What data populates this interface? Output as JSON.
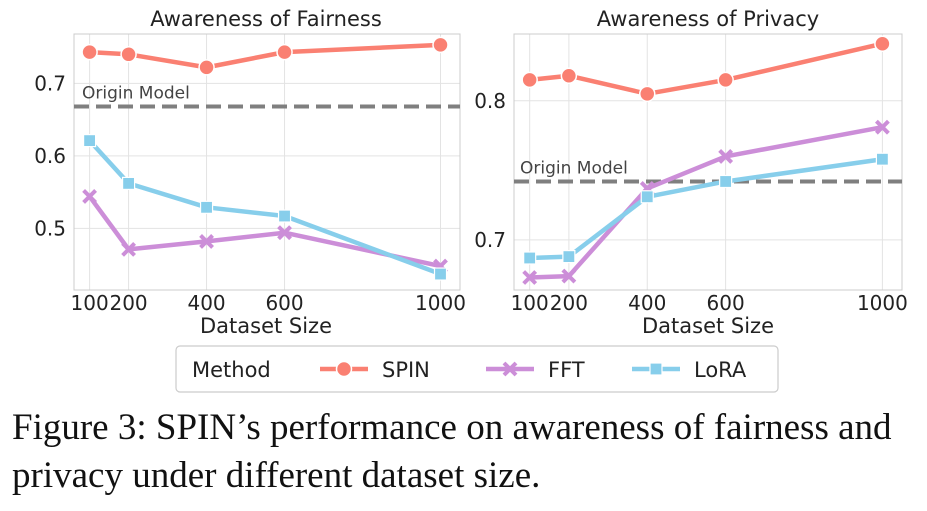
{
  "chart_data": [
    {
      "type": "line",
      "title": "Awareness of Fairness",
      "xlabel": "Dataset Size",
      "ylabel": "",
      "x": [
        100,
        200,
        400,
        600,
        1000
      ],
      "xlim": [
        60,
        1050
      ],
      "ylim": [
        0.415,
        0.768
      ],
      "yticks": [
        0.5,
        0.6,
        0.7
      ],
      "ytick_labels": [
        "0.5",
        "0.6",
        "0.7"
      ],
      "xtick_labels": [
        "100",
        "200",
        "400",
        "600",
        "1000"
      ],
      "grid": true,
      "series": [
        {
          "name": "SPIN",
          "values": [
            0.743,
            0.74,
            0.722,
            0.743,
            0.753
          ]
        },
        {
          "name": "FFT",
          "values": [
            0.544,
            0.471,
            0.482,
            0.494,
            0.448
          ]
        },
        {
          "name": "LoRA",
          "values": [
            0.621,
            0.562,
            0.529,
            0.517,
            0.437
          ]
        }
      ],
      "reference_line": {
        "label": "Origin Model",
        "value": 0.668
      }
    },
    {
      "type": "line",
      "title": "Awareness of Privacy",
      "xlabel": "Dataset Size",
      "ylabel": "",
      "x": [
        100,
        200,
        400,
        600,
        1000
      ],
      "xlim": [
        60,
        1050
      ],
      "ylim": [
        0.664,
        0.848
      ],
      "yticks": [
        0.7,
        0.8
      ],
      "ytick_labels": [
        "0.7",
        "0.8"
      ],
      "xtick_labels": [
        "100",
        "200",
        "400",
        "600",
        "1000"
      ],
      "grid": true,
      "series": [
        {
          "name": "SPIN",
          "values": [
            0.815,
            0.818,
            0.805,
            0.815,
            0.841
          ]
        },
        {
          "name": "FFT",
          "values": [
            0.673,
            0.674,
            0.737,
            0.76,
            0.781
          ]
        },
        {
          "name": "LoRA",
          "values": [
            0.687,
            0.688,
            0.731,
            0.742,
            0.758
          ]
        }
      ],
      "reference_line": {
        "label": "Origin Model",
        "value": 0.742
      }
    }
  ],
  "legend": {
    "title": "Method",
    "items": [
      {
        "label": "SPIN",
        "color": "#fa8072",
        "marker": "circle"
      },
      {
        "label": "FFT",
        "color": "#cc8ed8",
        "marker": "x"
      },
      {
        "label": "LoRA",
        "color": "#87ceeb",
        "marker": "square"
      }
    ]
  },
  "colors": {
    "SPIN": "#fa8072",
    "FFT": "#cc8ed8",
    "LoRA": "#87ceeb",
    "reference": "#7f7f7f"
  },
  "caption": "Figure 3: SPIN’s performance on awareness of fairness and privacy under different dataset size."
}
